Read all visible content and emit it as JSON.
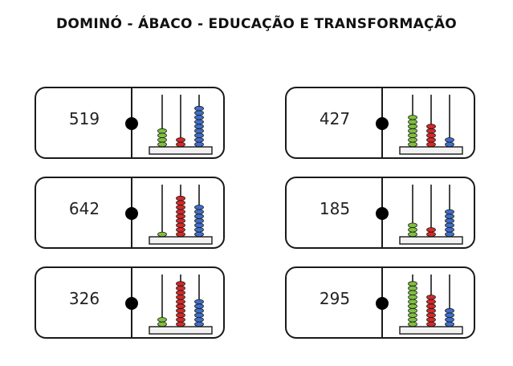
{
  "title": "DOMINÓ - ÁBACO - EDUCAÇÃO E TRANSFORMAÇÃO",
  "colors": {
    "units": "#3f6fc9",
    "tens": "#d62828",
    "hundreds": "#7fbf3f",
    "frame": "#1a1a1a"
  },
  "tiles": [
    {
      "number": "519",
      "abacus": {
        "hundreds": 4,
        "tens": 2,
        "units": 9
      }
    },
    {
      "number": "427",
      "abacus": {
        "hundreds": 7,
        "tens": 5,
        "units": 2
      }
    },
    {
      "number": "642",
      "abacus": {
        "hundreds": 1,
        "tens": 9,
        "units": 7
      }
    },
    {
      "number": "185",
      "abacus": {
        "hundreds": 3,
        "tens": 2,
        "units": 6
      }
    },
    {
      "number": "326",
      "abacus": {
        "hundreds": 2,
        "tens": 10,
        "units": 6
      }
    },
    {
      "number": "295",
      "abacus": {
        "hundreds": 10,
        "tens": 7,
        "units": 4
      }
    }
  ]
}
